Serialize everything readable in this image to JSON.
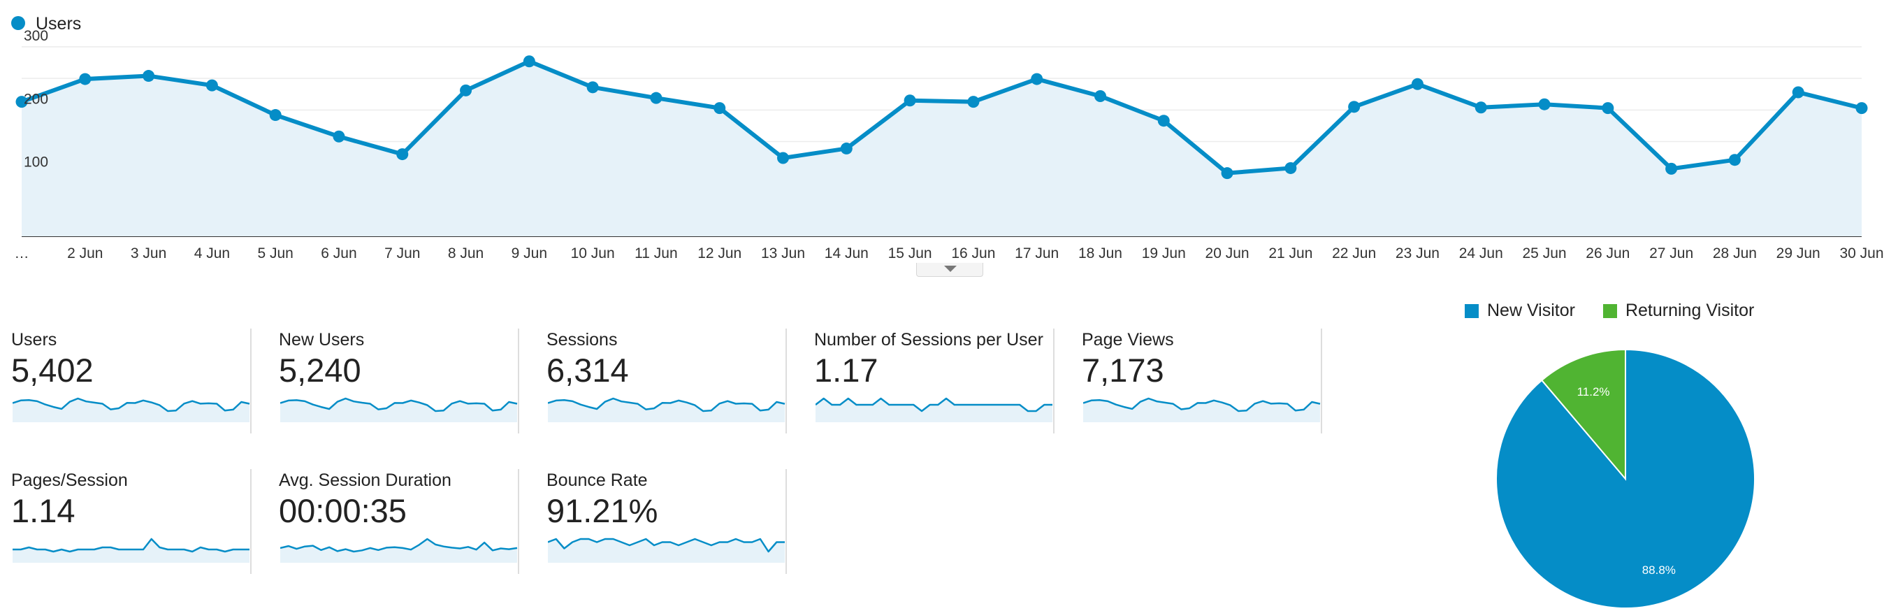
{
  "colors": {
    "line": "#058dc7",
    "area": "#e6f2f9",
    "grid": "#ececec",
    "axis": "#333333",
    "spark_fill": "#e6f2f9",
    "new_visitor": "#058dc7",
    "returning_visitor": "#50b432"
  },
  "chart_data": [
    {
      "type": "line",
      "title": "",
      "legend": [
        "Users"
      ],
      "series": [
        {
          "name": "Users",
          "values": [
            213,
            249,
            254,
            239,
            192,
            158,
            130,
            231,
            277,
            236,
            219,
            203,
            124,
            139,
            215,
            213,
            249,
            222,
            183,
            100,
            108,
            205,
            241,
            204,
            209,
            203,
            107,
            121,
            228,
            203
          ]
        }
      ],
      "categories": [
        "…",
        "2 Jun",
        "3 Jun",
        "4 Jun",
        "5 Jun",
        "6 Jun",
        "7 Jun",
        "8 Jun",
        "9 Jun",
        "10 Jun",
        "11 Jun",
        "12 Jun",
        "13 Jun",
        "14 Jun",
        "15 Jun",
        "16 Jun",
        "17 Jun",
        "18 Jun",
        "19 Jun",
        "20 Jun",
        "21 Jun",
        "22 Jun",
        "23 Jun",
        "24 Jun",
        "25 Jun",
        "26 Jun",
        "27 Jun",
        "28 Jun",
        "29 Jun",
        "30 Jun"
      ],
      "ylim": [
        0,
        300
      ],
      "yticks": [
        "100",
        "200",
        "300"
      ],
      "xlabel": "",
      "ylabel": "",
      "grid": true,
      "legend_position": "top-left"
    },
    {
      "type": "pie",
      "title": "",
      "legend": [
        "New Visitor",
        "Returning Visitor"
      ],
      "labels": [
        "New Visitor",
        "Returning Visitor"
      ],
      "values": [
        88.8,
        11.2
      ],
      "value_labels": [
        "88.8%",
        "11.2%"
      ],
      "legend_position": "top"
    }
  ],
  "metrics": [
    {
      "label": "Users",
      "value": "5,402",
      "spark": [
        213,
        249,
        254,
        239,
        192,
        158,
        130,
        231,
        277,
        236,
        219,
        203,
        124,
        139,
        215,
        213,
        249,
        222,
        183,
        100,
        108,
        205,
        241,
        204,
        209,
        203,
        107,
        121,
        228,
        203
      ]
    },
    {
      "label": "New Users",
      "value": "5,240",
      "spark": [
        206,
        241,
        246,
        232,
        186,
        153,
        126,
        224,
        269,
        229,
        212,
        197,
        120,
        135,
        208,
        207,
        241,
        215,
        178,
        97,
        105,
        199,
        234,
        198,
        203,
        197,
        104,
        117,
        221,
        197
      ]
    },
    {
      "label": "Sessions",
      "value": "6,314",
      "spark": [
        249,
        291,
        297,
        279,
        224,
        185,
        152,
        270,
        324,
        276,
        256,
        237,
        145,
        162,
        251,
        249,
        291,
        259,
        214,
        117,
        126,
        240,
        282,
        238,
        244,
        237,
        125,
        141,
        266,
        237
      ]
    },
    {
      "label": "Number of Sessions per User",
      "value": "1.17",
      "spark": [
        1.17,
        1.18,
        1.17,
        1.17,
        1.18,
        1.17,
        1.17,
        1.17,
        1.18,
        1.17,
        1.17,
        1.17,
        1.17,
        1.16,
        1.17,
        1.17,
        1.18,
        1.17,
        1.17,
        1.17,
        1.17,
        1.17,
        1.17,
        1.17,
        1.17,
        1.17,
        1.16,
        1.16,
        1.17,
        1.17
      ]
    },
    {
      "label": "Page Views",
      "value": "7,173",
      "spark": [
        283,
        331,
        338,
        317,
        255,
        210,
        173,
        307,
        368,
        314,
        291,
        269,
        165,
        185,
        285,
        283,
        331,
        294,
        243,
        133,
        143,
        272,
        320,
        271,
        278,
        269,
        142,
        160,
        303,
        269
      ]
    },
    {
      "label": "Pages/Session",
      "value": "1.14",
      "spark": [
        1.14,
        1.14,
        1.15,
        1.14,
        1.14,
        1.13,
        1.14,
        1.13,
        1.14,
        1.14,
        1.14,
        1.15,
        1.15,
        1.14,
        1.14,
        1.14,
        1.14,
        1.19,
        1.15,
        1.14,
        1.14,
        1.14,
        1.13,
        1.15,
        1.14,
        1.14,
        1.13,
        1.14,
        1.14,
        1.14
      ]
    },
    {
      "label": "Avg. Session Duration",
      "value": "00:00:35",
      "spark": [
        33,
        38,
        31,
        37,
        39,
        28,
        35,
        25,
        30,
        24,
        27,
        33,
        28,
        34,
        35,
        33,
        29,
        41,
        56,
        42,
        37,
        34,
        32,
        36,
        29,
        47,
        27,
        32,
        30,
        33
      ]
    },
    {
      "label": "Bounce Rate",
      "value": "91.21%",
      "spark": [
        91.2,
        91.3,
        91.0,
        91.2,
        91.3,
        91.3,
        91.2,
        91.3,
        91.3,
        91.2,
        91.1,
        91.2,
        91.3,
        91.1,
        91.2,
        91.2,
        91.1,
        91.2,
        91.3,
        91.2,
        91.1,
        91.2,
        91.2,
        91.3,
        91.2,
        91.2,
        91.3,
        90.9,
        91.2,
        91.2
      ]
    }
  ]
}
